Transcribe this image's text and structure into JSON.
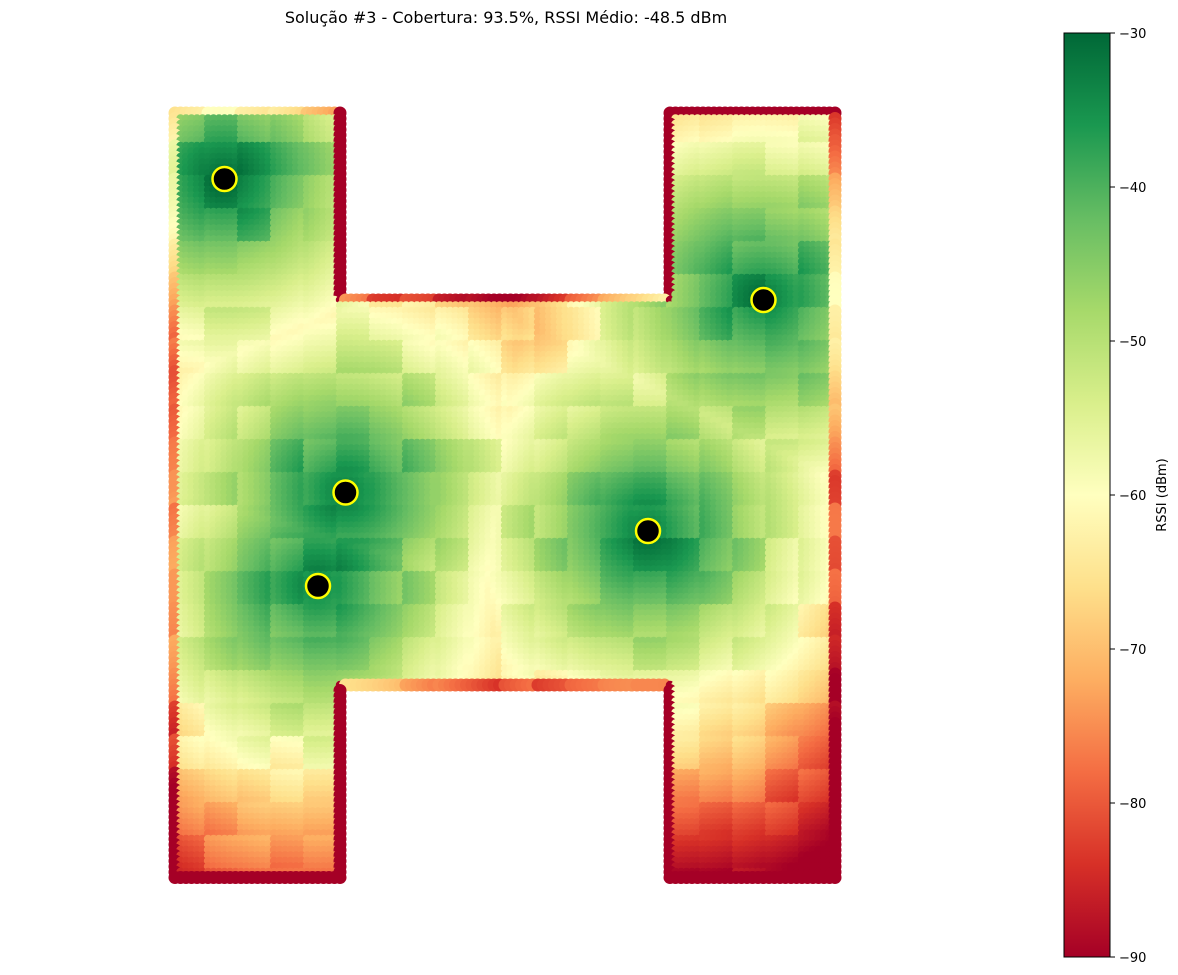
{
  "chart_data": {
    "type": "heatmap",
    "title": "Solução #3 - Cobertura: 93.5%, RSSI Médio: -48.5 dBm",
    "colorbar": {
      "label": "RSSI (dBm)",
      "min": -90,
      "max": -30,
      "ticks": [
        -30,
        -40,
        -50,
        -60,
        -70,
        -80,
        -90
      ],
      "tick_labels": [
        "−30",
        "−40",
        "−50",
        "−60",
        "−70",
        "−80",
        "−90"
      ],
      "colormap": "RdYlGn",
      "stops": [
        "#a50026",
        "#d73027",
        "#f46d43",
        "#fdae61",
        "#fee08b",
        "#ffffbf",
        "#d9ef8b",
        "#a6d96a",
        "#66bd63",
        "#1a9850",
        "#006837"
      ]
    },
    "floor_shape": "H",
    "access_points": [
      {
        "x": 9,
        "y": 12,
        "marker_fill": "#000000",
        "marker_edge": "#ffff00"
      },
      {
        "x": 107,
        "y": 34,
        "marker_fill": "#000000",
        "marker_edge": "#ffff00"
      },
      {
        "x": 31,
        "y": 69,
        "marker_fill": "#000000",
        "marker_edge": "#ffff00"
      },
      {
        "x": 26,
        "y": 86,
        "marker_fill": "#000000",
        "marker_edge": "#ffff00"
      },
      {
        "x": 86,
        "y": 76,
        "marker_fill": "#000000",
        "marker_edge": "#ffff00"
      }
    ],
    "axes": "off",
    "grid": false
  }
}
